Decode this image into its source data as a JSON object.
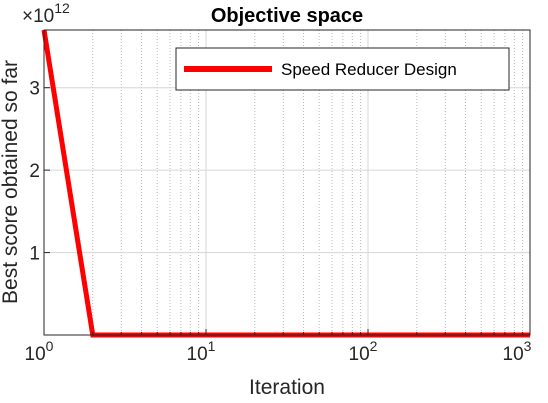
{
  "chart_data": {
    "type": "line",
    "title": "Objective space",
    "xlabel": "Iteration",
    "ylabel": "Best score obtained so far",
    "xscale": "log",
    "xlim": [
      1,
      1000
    ],
    "ylim": [
      0,
      3.7
    ],
    "y_multiplier_label": "×10",
    "y_multiplier_exponent": "12",
    "xticks": [
      {
        "value": 1,
        "base": "10",
        "exp": "0"
      },
      {
        "value": 10,
        "base": "10",
        "exp": "1"
      },
      {
        "value": 100,
        "base": "10",
        "exp": "2"
      },
      {
        "value": 1000,
        "base": "10",
        "exp": "3"
      }
    ],
    "yticks": [
      {
        "value": 1,
        "label": "1"
      },
      {
        "value": 2,
        "label": "2"
      },
      {
        "value": 3,
        "label": "3"
      }
    ],
    "grid": true,
    "minor_grid": true,
    "legend_position": "top-right",
    "series": [
      {
        "name": "Speed Reducer Design",
        "color": "#ff0000",
        "x": [
          1,
          2,
          1000
        ],
        "y": [
          3.7,
          0,
          0
        ]
      }
    ]
  }
}
